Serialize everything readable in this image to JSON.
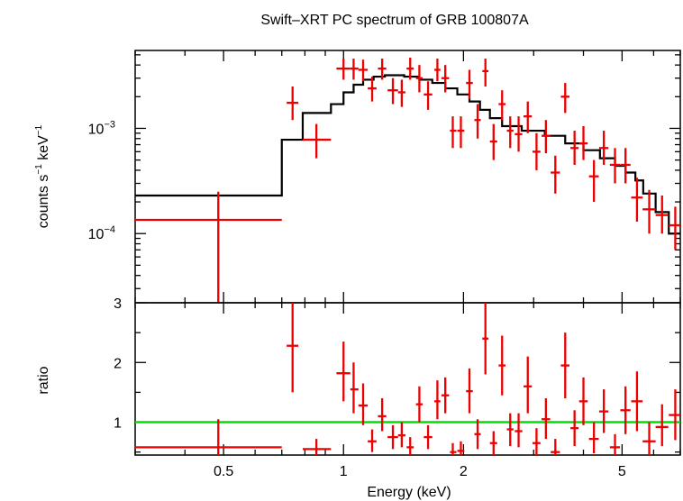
{
  "chart_data": {
    "type": "scatter",
    "title": "Swift–XRT PC spectrum of GRB 100807A",
    "xlabel": "Energy (keV)",
    "x_scale": "log",
    "xlim": [
      0.3,
      7.0
    ],
    "x_ticks": [
      "0.5",
      "1",
      "2",
      "5"
    ],
    "colors": {
      "data": "#ee0000",
      "model": "#000000",
      "unity": "#00e000"
    },
    "panels": [
      {
        "name": "spectrum",
        "ylabel_text": "counts s",
        "ylabel_sup1": "−1",
        "ylabel_mid": " keV",
        "ylabel_sup2": "−1",
        "y_scale": "log",
        "ylim": [
          2.2e-05,
          0.0055
        ],
        "y_ticks": [
          {
            "value": 0.001,
            "base": "10",
            "exp": "−3"
          },
          {
            "value": 0.0001,
            "base": "10",
            "exp": "−4"
          }
        ],
        "data": [
          {
            "x": 0.485,
            "xlo": 0.3,
            "xhi": 0.7,
            "y": 0.000135,
            "ylo": 2.2e-05,
            "yhi": 0.00025
          },
          {
            "x": 0.745,
            "xlo": 0.72,
            "xhi": 0.77,
            "y": 0.00175,
            "ylo": 0.0012,
            "yhi": 0.0025
          },
          {
            "x": 0.855,
            "xlo": 0.79,
            "xhi": 0.93,
            "y": 0.00078,
            "ylo": 0.00052,
            "yhi": 0.0011
          },
          {
            "x": 1.0,
            "xlo": 0.96,
            "xhi": 1.04,
            "y": 0.0037,
            "ylo": 0.0029,
            "yhi": 0.0046
          },
          {
            "x": 1.06,
            "xlo": 1.04,
            "xhi": 1.09,
            "y": 0.0037,
            "ylo": 0.0029,
            "yhi": 0.0046
          },
          {
            "x": 1.12,
            "xlo": 1.09,
            "xhi": 1.15,
            "y": 0.0036,
            "ylo": 0.0028,
            "yhi": 0.0045
          },
          {
            "x": 1.18,
            "xlo": 1.15,
            "xhi": 1.21,
            "y": 0.0024,
            "ylo": 0.0018,
            "yhi": 0.0031
          },
          {
            "x": 1.25,
            "xlo": 1.22,
            "xhi": 1.28,
            "y": 0.0037,
            "ylo": 0.0029,
            "yhi": 0.0046
          },
          {
            "x": 1.33,
            "xlo": 1.29,
            "xhi": 1.37,
            "y": 0.0023,
            "ylo": 0.0017,
            "yhi": 0.003
          },
          {
            "x": 1.4,
            "xlo": 1.37,
            "xhi": 1.43,
            "y": 0.0022,
            "ylo": 0.0016,
            "yhi": 0.0029
          },
          {
            "x": 1.47,
            "xlo": 1.44,
            "xhi": 1.5,
            "y": 0.0037,
            "ylo": 0.0029,
            "yhi": 0.0047
          },
          {
            "x": 1.55,
            "xlo": 1.52,
            "xhi": 1.58,
            "y": 0.003,
            "ylo": 0.0022,
            "yhi": 0.004
          },
          {
            "x": 1.63,
            "xlo": 1.59,
            "xhi": 1.67,
            "y": 0.0021,
            "ylo": 0.0015,
            "yhi": 0.0028
          },
          {
            "x": 1.72,
            "xlo": 1.69,
            "xhi": 1.75,
            "y": 0.0036,
            "ylo": 0.0028,
            "yhi": 0.0046
          },
          {
            "x": 1.8,
            "xlo": 1.76,
            "xhi": 1.84,
            "y": 0.003,
            "ylo": 0.0022,
            "yhi": 0.004
          },
          {
            "x": 1.88,
            "xlo": 1.85,
            "xhi": 1.92,
            "y": 0.00095,
            "ylo": 0.00065,
            "yhi": 0.0013
          },
          {
            "x": 1.97,
            "xlo": 1.93,
            "xhi": 2.01,
            "y": 0.00095,
            "ylo": 0.00065,
            "yhi": 0.0013
          },
          {
            "x": 2.07,
            "xlo": 2.03,
            "xhi": 2.11,
            "y": 0.0027,
            "ylo": 0.0019,
            "yhi": 0.0036
          },
          {
            "x": 2.17,
            "xlo": 2.13,
            "xhi": 2.21,
            "y": 0.0012,
            "ylo": 0.0008,
            "yhi": 0.0017
          },
          {
            "x": 2.27,
            "xlo": 2.23,
            "xhi": 2.31,
            "y": 0.0035,
            "ylo": 0.0025,
            "yhi": 0.0046
          },
          {
            "x": 2.38,
            "xlo": 2.33,
            "xhi": 2.43,
            "y": 0.00075,
            "ylo": 0.0005,
            "yhi": 0.0011
          },
          {
            "x": 2.5,
            "xlo": 2.45,
            "xhi": 2.55,
            "y": 0.0017,
            "ylo": 0.0012,
            "yhi": 0.0023
          },
          {
            "x": 2.62,
            "xlo": 2.57,
            "xhi": 2.67,
            "y": 0.00095,
            "ylo": 0.00065,
            "yhi": 0.0013
          },
          {
            "x": 2.75,
            "xlo": 2.69,
            "xhi": 2.81,
            "y": 0.00088,
            "ylo": 0.0006,
            "yhi": 0.0013
          },
          {
            "x": 2.9,
            "xlo": 2.83,
            "xhi": 2.97,
            "y": 0.0013,
            "ylo": 0.0009,
            "yhi": 0.0018
          },
          {
            "x": 3.05,
            "xlo": 2.98,
            "xhi": 3.12,
            "y": 0.0006,
            "ylo": 0.0004,
            "yhi": 0.0009
          },
          {
            "x": 3.22,
            "xlo": 3.14,
            "xhi": 3.3,
            "y": 0.00085,
            "ylo": 0.00058,
            "yhi": 0.0012
          },
          {
            "x": 3.4,
            "xlo": 3.31,
            "xhi": 3.49,
            "y": 0.00038,
            "ylo": 0.00024,
            "yhi": 0.00055
          },
          {
            "x": 3.6,
            "xlo": 3.51,
            "xhi": 3.69,
            "y": 0.002,
            "ylo": 0.0014,
            "yhi": 0.0027
          },
          {
            "x": 3.8,
            "xlo": 3.71,
            "xhi": 3.89,
            "y": 0.00065,
            "ylo": 0.00045,
            "yhi": 0.00095
          },
          {
            "x": 4.0,
            "xlo": 3.9,
            "xhi": 4.1,
            "y": 0.00072,
            "ylo": 0.0005,
            "yhi": 0.00105
          },
          {
            "x": 4.25,
            "xlo": 4.13,
            "xhi": 4.37,
            "y": 0.00035,
            "ylo": 0.0002,
            "yhi": 0.0005
          },
          {
            "x": 4.5,
            "xlo": 4.38,
            "xhi": 4.62,
            "y": 0.00065,
            "ylo": 0.00045,
            "yhi": 0.00095
          },
          {
            "x": 4.8,
            "xlo": 4.66,
            "xhi": 4.94,
            "y": 0.00045,
            "ylo": 0.0003,
            "yhi": 0.00065
          },
          {
            "x": 5.1,
            "xlo": 4.95,
            "xhi": 5.25,
            "y": 0.00045,
            "ylo": 0.0003,
            "yhi": 0.00065
          },
          {
            "x": 5.45,
            "xlo": 5.27,
            "xhi": 5.63,
            "y": 0.00022,
            "ylo": 0.00013,
            "yhi": 0.00034
          },
          {
            "x": 5.85,
            "xlo": 5.63,
            "xhi": 6.07,
            "y": 0.00017,
            "ylo": 0.0001,
            "yhi": 0.00026
          },
          {
            "x": 6.3,
            "xlo": 6.07,
            "xhi": 6.53,
            "y": 0.00015,
            "ylo": 0.0001,
            "yhi": 0.00023
          },
          {
            "x": 6.8,
            "xlo": 6.55,
            "xhi": 7.0,
            "y": 0.00012,
            "ylo": 7e-05,
            "yhi": 0.00018
          }
        ],
        "model_steps": [
          {
            "x0": 0.3,
            "x1": 0.7,
            "y": 0.00023
          },
          {
            "x0": 0.7,
            "x1": 0.79,
            "y": 0.00078
          },
          {
            "x0": 0.79,
            "x1": 0.93,
            "y": 0.0014
          },
          {
            "x0": 0.93,
            "x1": 1.0,
            "y": 0.0017
          },
          {
            "x0": 1.0,
            "x1": 1.06,
            "y": 0.0022
          },
          {
            "x0": 1.06,
            "x1": 1.12,
            "y": 0.0026
          },
          {
            "x0": 1.12,
            "x1": 1.19,
            "y": 0.0029
          },
          {
            "x0": 1.19,
            "x1": 1.27,
            "y": 0.0031
          },
          {
            "x0": 1.27,
            "x1": 1.42,
            "y": 0.0032
          },
          {
            "x0": 1.42,
            "x1": 1.55,
            "y": 0.0031
          },
          {
            "x0": 1.55,
            "x1": 1.67,
            "y": 0.0029
          },
          {
            "x0": 1.67,
            "x1": 1.8,
            "y": 0.0027
          },
          {
            "x0": 1.8,
            "x1": 1.93,
            "y": 0.0024
          },
          {
            "x0": 1.93,
            "x1": 2.07,
            "y": 0.0021
          },
          {
            "x0": 2.07,
            "x1": 2.2,
            "y": 0.0018
          },
          {
            "x0": 2.2,
            "x1": 2.33,
            "y": 0.0015
          },
          {
            "x0": 2.33,
            "x1": 2.5,
            "y": 0.00125
          },
          {
            "x0": 2.5,
            "x1": 2.8,
            "y": 0.00105
          },
          {
            "x0": 2.8,
            "x1": 3.2,
            "y": 0.00095
          },
          {
            "x0": 3.2,
            "x1": 3.6,
            "y": 0.00085
          },
          {
            "x0": 3.6,
            "x1": 4.0,
            "y": 0.00072
          },
          {
            "x0": 4.0,
            "x1": 4.4,
            "y": 0.00062
          },
          {
            "x0": 4.4,
            "x1": 4.8,
            "y": 0.00052
          },
          {
            "x0": 4.8,
            "x1": 5.1,
            "y": 0.00044
          },
          {
            "x0": 5.1,
            "x1": 5.4,
            "y": 0.00038
          },
          {
            "x0": 5.4,
            "x1": 5.65,
            "y": 0.00032
          },
          {
            "x0": 5.65,
            "x1": 6.07,
            "y": 0.00024
          },
          {
            "x0": 6.07,
            "x1": 6.55,
            "y": 0.00016
          },
          {
            "x0": 6.55,
            "x1": 7.0,
            "y": 0.0001
          }
        ]
      },
      {
        "name": "ratio",
        "ylabel": "ratio",
        "y_scale": "linear",
        "ylim": [
          0.45,
          3.0
        ],
        "y_ticks": [
          "1",
          "2",
          "3"
        ],
        "unity_line": 1,
        "data": [
          {
            "x": 0.485,
            "xlo": 0.3,
            "xhi": 0.7,
            "y": 0.58,
            "ylo": 0.45,
            "yhi": 1.05
          },
          {
            "x": 0.745,
            "xlo": 0.72,
            "xhi": 0.77,
            "y": 2.28,
            "ylo": 1.5,
            "yhi": 3.0
          },
          {
            "x": 0.855,
            "xlo": 0.79,
            "xhi": 0.93,
            "y": 0.55,
            "ylo": 0.45,
            "yhi": 0.72
          },
          {
            "x": 1.0,
            "xlo": 0.96,
            "xhi": 1.04,
            "y": 1.82,
            "ylo": 1.35,
            "yhi": 2.35
          },
          {
            "x": 1.06,
            "xlo": 1.04,
            "xhi": 1.09,
            "y": 1.55,
            "ylo": 1.15,
            "yhi": 2.0
          },
          {
            "x": 1.12,
            "xlo": 1.09,
            "xhi": 1.15,
            "y": 1.28,
            "ylo": 0.95,
            "yhi": 1.65
          },
          {
            "x": 1.18,
            "xlo": 1.15,
            "xhi": 1.21,
            "y": 0.68,
            "ylo": 0.5,
            "yhi": 0.88
          },
          {
            "x": 1.25,
            "xlo": 1.22,
            "xhi": 1.28,
            "y": 1.1,
            "ylo": 0.85,
            "yhi": 1.4
          },
          {
            "x": 1.33,
            "xlo": 1.29,
            "xhi": 1.37,
            "y": 0.75,
            "ylo": 0.55,
            "yhi": 0.95
          },
          {
            "x": 1.4,
            "xlo": 1.37,
            "xhi": 1.43,
            "y": 0.78,
            "ylo": 0.58,
            "yhi": 1.0
          },
          {
            "x": 1.47,
            "xlo": 1.44,
            "xhi": 1.5,
            "y": 0.58,
            "ylo": 0.45,
            "yhi": 0.75
          },
          {
            "x": 1.55,
            "xlo": 1.52,
            "xhi": 1.58,
            "y": 1.3,
            "ylo": 1.0,
            "yhi": 1.6
          },
          {
            "x": 1.63,
            "xlo": 1.59,
            "xhi": 1.67,
            "y": 0.75,
            "ylo": 0.55,
            "yhi": 0.95
          },
          {
            "x": 1.72,
            "xlo": 1.69,
            "xhi": 1.75,
            "y": 1.35,
            "ylo": 1.05,
            "yhi": 1.7
          },
          {
            "x": 1.8,
            "xlo": 1.76,
            "xhi": 1.84,
            "y": 1.45,
            "ylo": 1.15,
            "yhi": 1.75
          },
          {
            "x": 1.88,
            "xlo": 1.85,
            "xhi": 1.92,
            "y": 0.5,
            "ylo": 0.45,
            "yhi": 0.65
          },
          {
            "x": 1.97,
            "xlo": 1.93,
            "xhi": 2.01,
            "y": 0.52,
            "ylo": 0.45,
            "yhi": 0.68
          },
          {
            "x": 2.07,
            "xlo": 2.03,
            "xhi": 2.11,
            "y": 1.52,
            "ylo": 1.15,
            "yhi": 1.9
          },
          {
            "x": 2.17,
            "xlo": 2.13,
            "xhi": 2.21,
            "y": 0.8,
            "ylo": 0.55,
            "yhi": 1.05
          },
          {
            "x": 2.27,
            "xlo": 2.23,
            "xhi": 2.31,
            "y": 2.4,
            "ylo": 1.8,
            "yhi": 3.0
          },
          {
            "x": 2.38,
            "xlo": 2.33,
            "xhi": 2.43,
            "y": 0.65,
            "ylo": 0.45,
            "yhi": 0.85
          },
          {
            "x": 2.5,
            "xlo": 2.45,
            "xhi": 2.55,
            "y": 1.95,
            "ylo": 1.45,
            "yhi": 2.45
          },
          {
            "x": 2.62,
            "xlo": 2.57,
            "xhi": 2.67,
            "y": 0.88,
            "ylo": 0.6,
            "yhi": 1.15
          },
          {
            "x": 2.75,
            "xlo": 2.69,
            "xhi": 2.81,
            "y": 0.85,
            "ylo": 0.58,
            "yhi": 1.15
          },
          {
            "x": 2.9,
            "xlo": 2.83,
            "xhi": 2.97,
            "y": 1.6,
            "ylo": 1.15,
            "yhi": 2.1
          },
          {
            "x": 3.05,
            "xlo": 2.98,
            "xhi": 3.12,
            "y": 0.65,
            "ylo": 0.45,
            "yhi": 0.9
          },
          {
            "x": 3.22,
            "xlo": 3.14,
            "xhi": 3.3,
            "y": 1.05,
            "ylo": 0.72,
            "yhi": 1.4
          },
          {
            "x": 3.4,
            "xlo": 3.31,
            "xhi": 3.49,
            "y": 0.5,
            "ylo": 0.45,
            "yhi": 0.72
          },
          {
            "x": 3.6,
            "xlo": 3.51,
            "xhi": 3.69,
            "y": 1.95,
            "ylo": 1.4,
            "yhi": 2.5
          },
          {
            "x": 3.8,
            "xlo": 3.71,
            "xhi": 3.89,
            "y": 0.9,
            "ylo": 0.6,
            "yhi": 1.2
          },
          {
            "x": 4.0,
            "xlo": 3.9,
            "xhi": 4.1,
            "y": 1.35,
            "ylo": 0.95,
            "yhi": 1.75
          },
          {
            "x": 4.25,
            "xlo": 4.13,
            "xhi": 4.37,
            "y": 0.72,
            "ylo": 0.48,
            "yhi": 1.0
          },
          {
            "x": 4.5,
            "xlo": 4.38,
            "xhi": 4.62,
            "y": 1.18,
            "ylo": 0.82,
            "yhi": 1.55
          },
          {
            "x": 4.8,
            "xlo": 4.66,
            "xhi": 4.94,
            "y": 0.58,
            "ylo": 0.45,
            "yhi": 0.8
          },
          {
            "x": 5.1,
            "xlo": 4.95,
            "xhi": 5.25,
            "y": 1.2,
            "ylo": 0.8,
            "yhi": 1.6
          },
          {
            "x": 5.45,
            "xlo": 5.27,
            "xhi": 5.63,
            "y": 1.35,
            "ylo": 0.85,
            "yhi": 1.85
          },
          {
            "x": 5.85,
            "xlo": 5.63,
            "xhi": 6.07,
            "y": 0.68,
            "ylo": 0.45,
            "yhi": 1.0
          },
          {
            "x": 6.3,
            "xlo": 6.07,
            "xhi": 6.53,
            "y": 0.92,
            "ylo": 0.6,
            "yhi": 1.3
          },
          {
            "x": 6.8,
            "xlo": 6.55,
            "xhi": 7.0,
            "y": 1.12,
            "ylo": 0.7,
            "yhi": 1.55
          }
        ]
      }
    ]
  }
}
